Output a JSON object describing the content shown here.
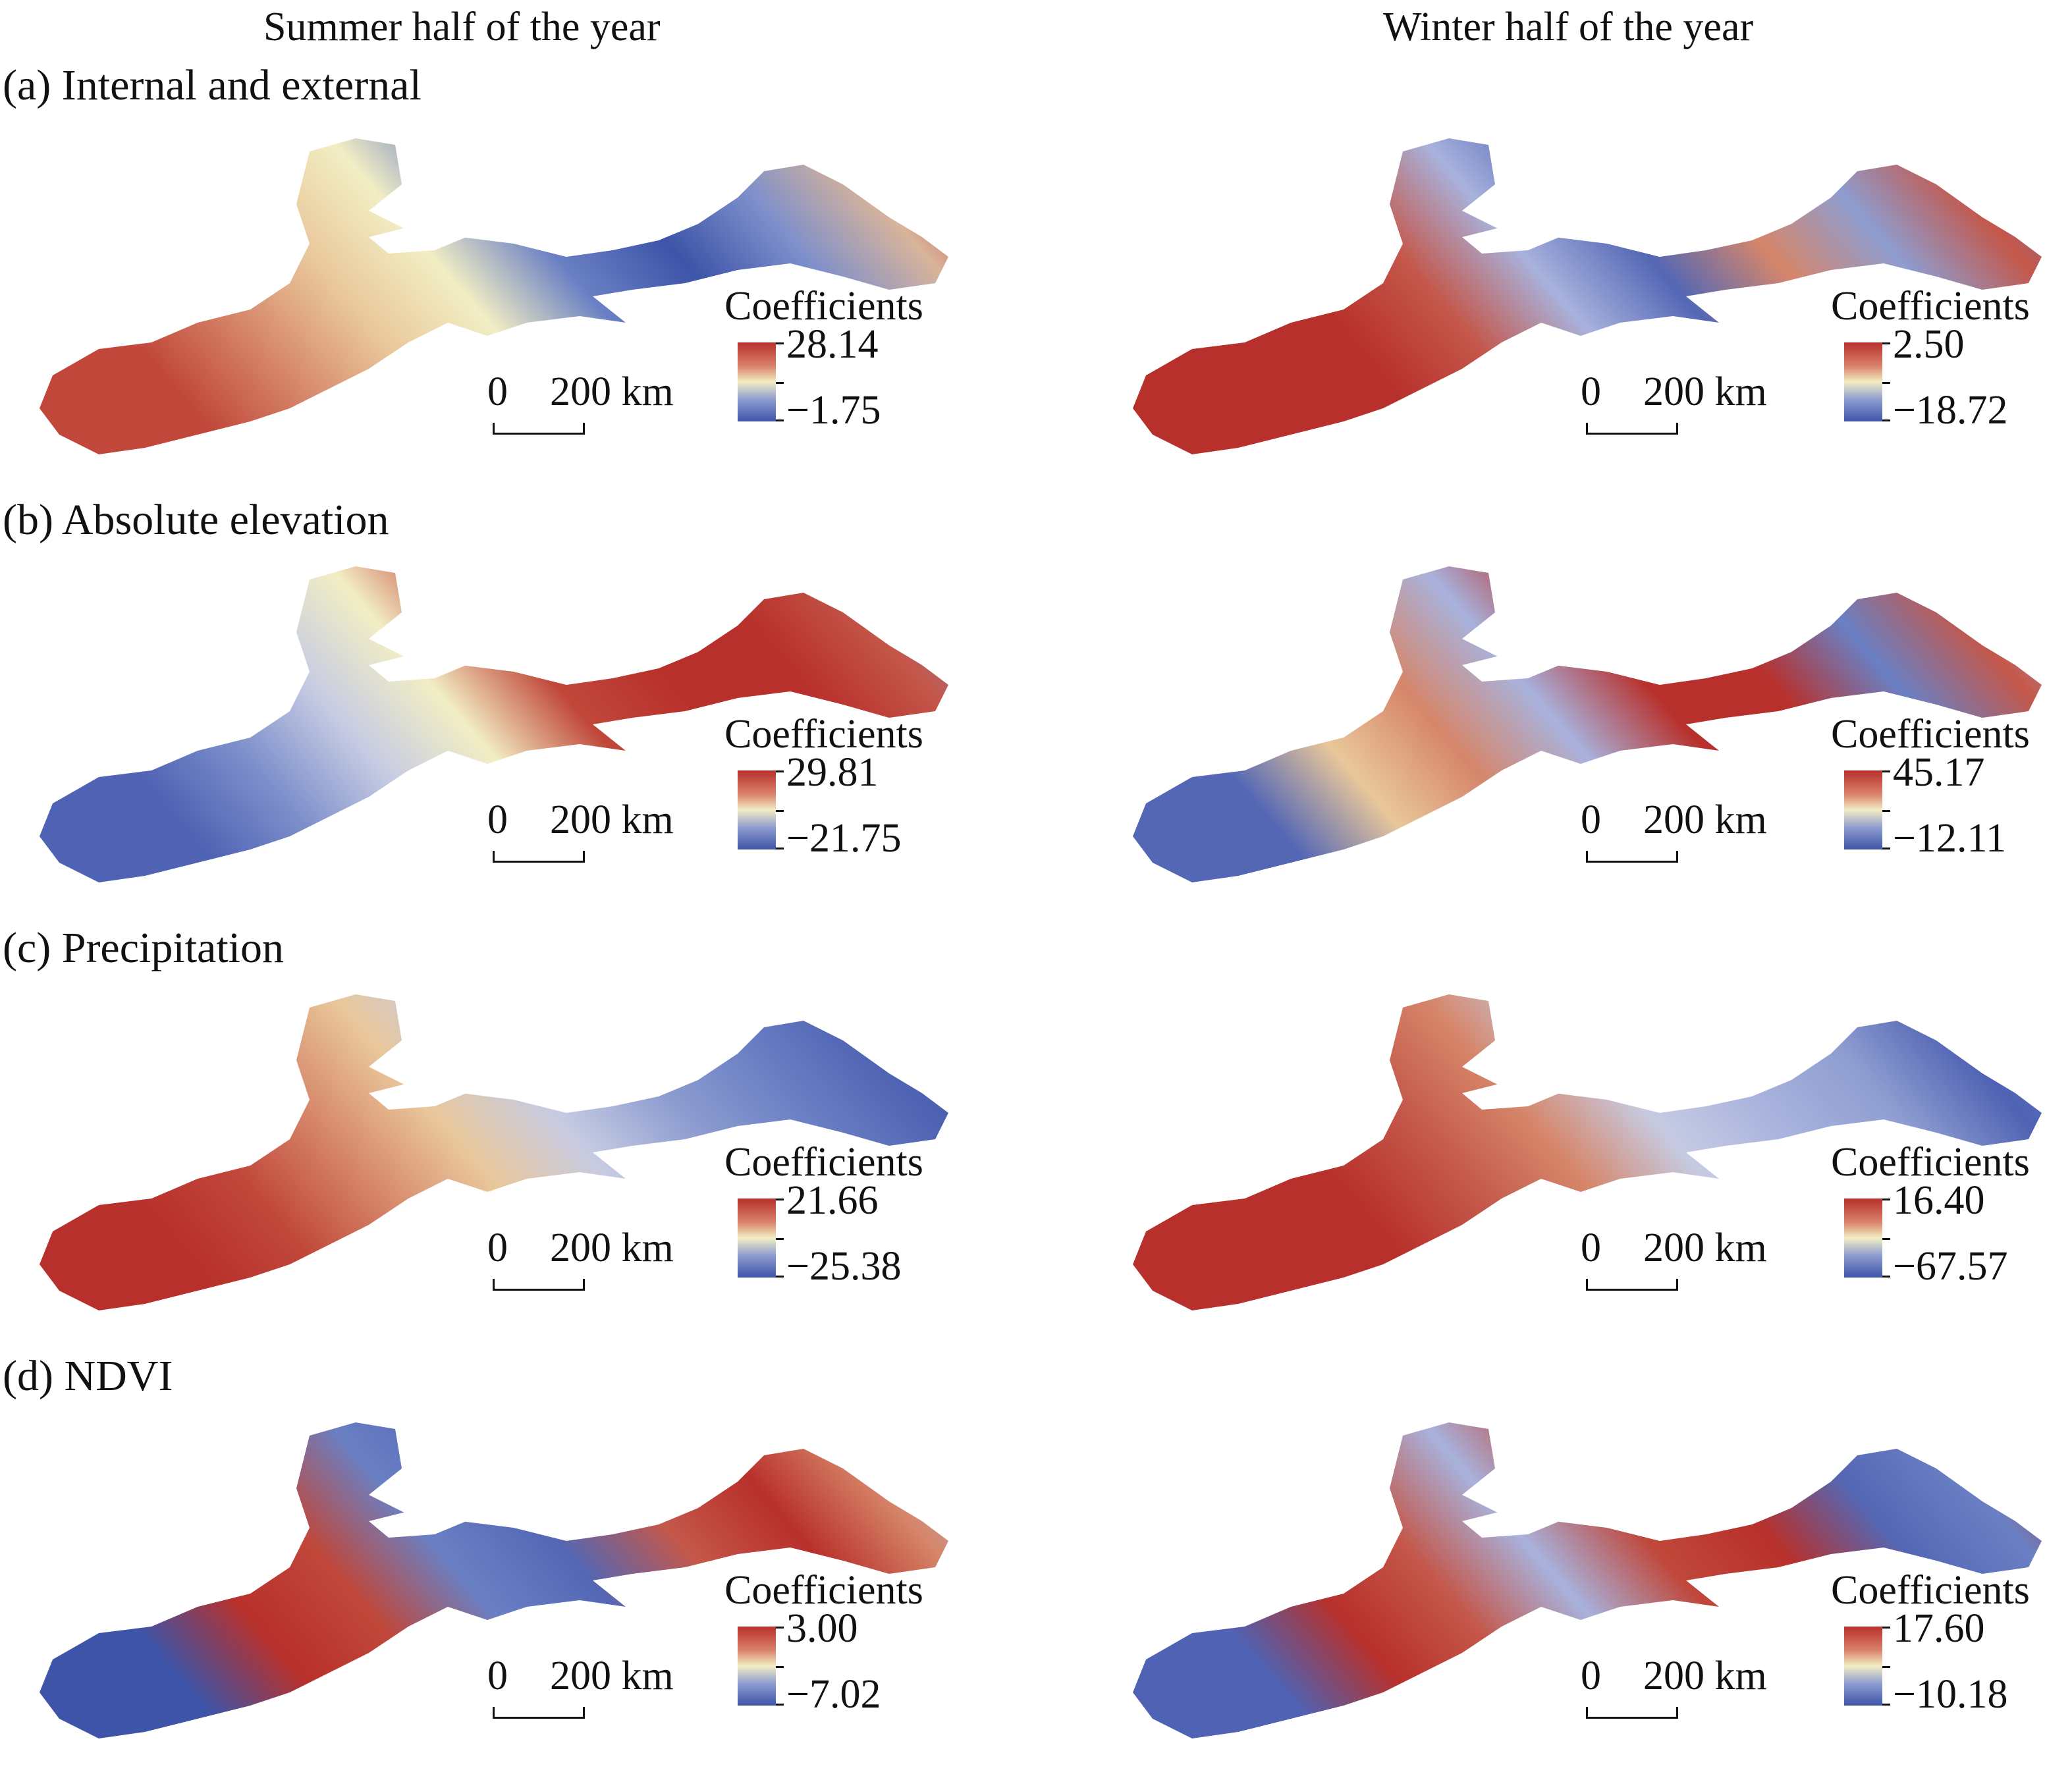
{
  "columns": {
    "summer": "Summer half of the year",
    "winter": "Winter half of the year"
  },
  "rows": [
    {
      "label": "(a) Internal and external",
      "summer": {
        "legend_title": "Coefficients",
        "max": "28.14",
        "min": "−1.75",
        "scale_zero": "0",
        "scale_dist": "200 km"
      },
      "winter": {
        "legend_title": "Coefficients",
        "max": "2.50",
        "min": "−18.72",
        "scale_zero": "0",
        "scale_dist": "200 km"
      }
    },
    {
      "label": "(b) Absolute elevation",
      "summer": {
        "legend_title": "Coefficients",
        "max": "29.81",
        "min": "−21.75",
        "scale_zero": "0",
        "scale_dist": "200 km"
      },
      "winter": {
        "legend_title": "Coefficients",
        "max": "45.17",
        "min": "−12.11",
        "scale_zero": "0",
        "scale_dist": "200 km"
      }
    },
    {
      "label": "(c) Precipitation",
      "summer": {
        "legend_title": "Coefficients",
        "max": "21.66",
        "min": "−25.38",
        "scale_zero": "0",
        "scale_dist": "200 km"
      },
      "winter": {
        "legend_title": "Coefficients",
        "max": "16.40",
        "min": "−67.57",
        "scale_zero": "0",
        "scale_dist": "200 km"
      }
    },
    {
      "label": "(d) NDVI",
      "summer": {
        "legend_title": "Coefficients",
        "max": "3.00",
        "min": "−7.02",
        "scale_zero": "0",
        "scale_dist": "200 km"
      },
      "winter": {
        "legend_title": "Coefficients",
        "max": "17.60",
        "min": "−10.18",
        "scale_zero": "0",
        "scale_dist": "200 km"
      }
    }
  ],
  "colors": {
    "high": "#b8302b",
    "mid": "#f2eec4",
    "low": "#3d54a8"
  },
  "maps": {
    "a_summer": [
      "#c0473a",
      "#d6866a",
      "#e9c79a",
      "#f2eec4",
      "#6a80c4",
      "#3d54a8",
      "#7d8fcb",
      "#d9b49a",
      "#b8302b"
    ],
    "a_winter": [
      "#b8302b",
      "#b8302b",
      "#c4574a",
      "#a8b2dd",
      "#5467b5",
      "#d6866a",
      "#8e9dd0",
      "#c4574a",
      "#6a80c4"
    ],
    "b_summer": [
      "#4f62b3",
      "#7d8fcb",
      "#c6cbe3",
      "#f2eec4",
      "#c0473a",
      "#b8302b",
      "#b8302b",
      "#c4574a",
      "#7d8fcb"
    ],
    "b_winter": [
      "#5467b5",
      "#e9c79a",
      "#d6866a",
      "#a8b2dd",
      "#b8302b",
      "#b8302b",
      "#6a80c4",
      "#c4574a",
      "#a8b2dd"
    ],
    "c_summer": [
      "#b8302b",
      "#c0473a",
      "#d6866a",
      "#e9c79a",
      "#c6cbe3",
      "#8e9dd0",
      "#6a80c4",
      "#4f62b3",
      "#3d54a8"
    ],
    "c_winter": [
      "#b8302b",
      "#b8302b",
      "#c4574a",
      "#d6866a",
      "#c6cbe3",
      "#a8b2dd",
      "#8e9dd0",
      "#4f62b3",
      "#6a80c4"
    ],
    "d_summer": [
      "#3d54a8",
      "#b8302b",
      "#c0473a",
      "#6a80c4",
      "#5467b5",
      "#c4574a",
      "#b8302b",
      "#d6866a",
      "#a8b2dd"
    ],
    "d_winter": [
      "#4f62b3",
      "#b8302b",
      "#c4574a",
      "#a8b2dd",
      "#c0473a",
      "#b8302b",
      "#5467b5",
      "#6a80c4",
      "#b8302b"
    ]
  }
}
